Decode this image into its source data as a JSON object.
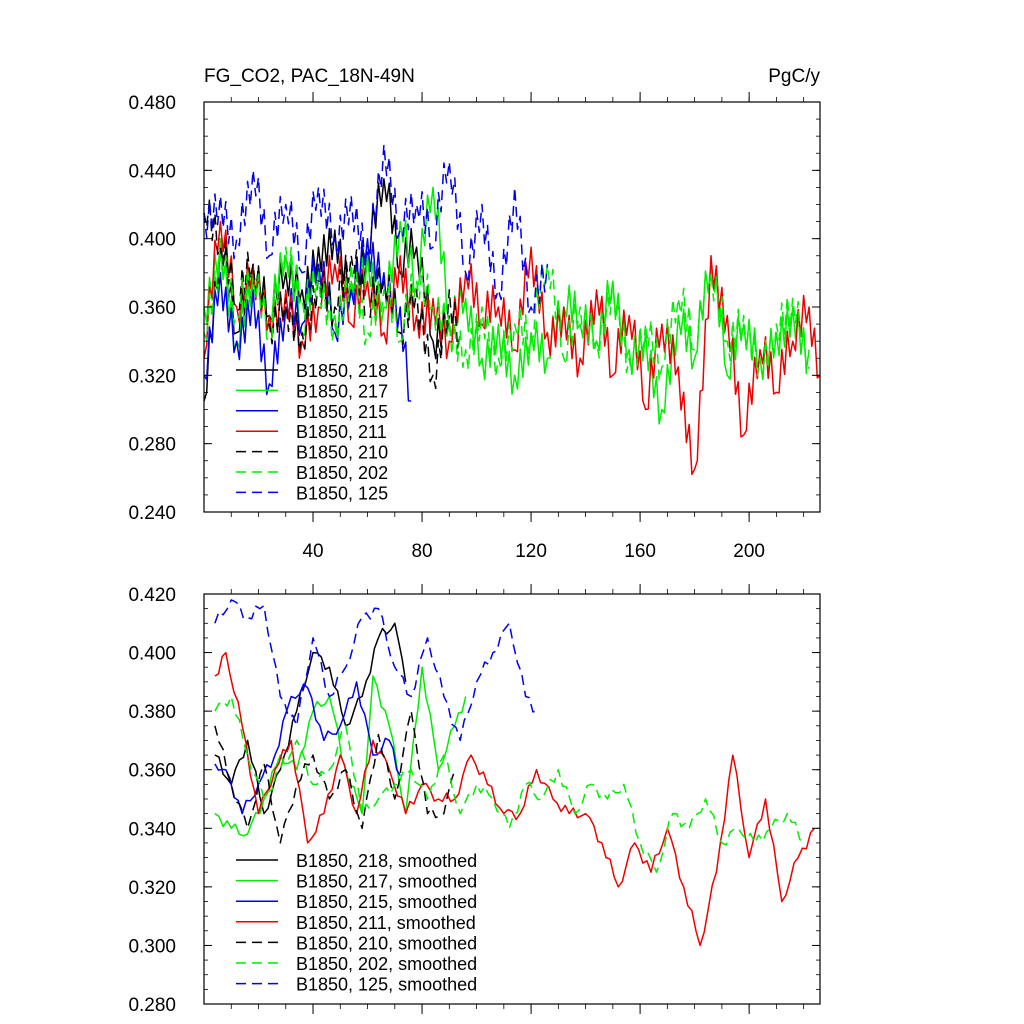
{
  "chart_data": [
    {
      "type": "line",
      "title": "FG_CO2, PAC_18N-49N",
      "units": "PgC/y",
      "xlim": [
        0,
        226
      ],
      "ylim": [
        0.24,
        0.48
      ],
      "x_ticks": [
        40,
        80,
        120,
        160,
        200
      ],
      "y_ticks": [
        0.24,
        0.28,
        0.32,
        0.36,
        0.4,
        0.44,
        0.48
      ],
      "y_tick_labels": [
        "0.240",
        "0.280",
        "0.320",
        "0.360",
        "0.400",
        "0.440",
        "0.480"
      ],
      "x_tick_labels": [
        "40",
        "80",
        "120",
        "160",
        "200"
      ],
      "legend_position": "bottom-left",
      "series": [
        {
          "name": "B1850, 218",
          "color": "#000000",
          "dash": "solid",
          "smooth": false,
          "x": [
            0,
            6,
            12,
            18,
            24,
            30,
            36,
            42,
            48,
            54,
            60,
            66,
            72,
            78,
            84,
            90
          ],
          "y": [
            0.305,
            0.4,
            0.345,
            0.375,
            0.355,
            0.38,
            0.37,
            0.395,
            0.405,
            0.372,
            0.392,
            0.435,
            0.38,
            0.395,
            0.34,
            0.355
          ]
        },
        {
          "name": "B1850, 217",
          "color": "#00ee00",
          "dash": "solid",
          "smooth": false,
          "x": [
            0,
            6,
            12,
            18,
            24,
            30,
            36,
            42,
            48,
            54,
            60,
            66,
            72,
            78,
            84,
            90,
            96,
            102,
            108,
            114,
            120,
            126,
            132,
            138,
            144,
            150,
            156,
            162,
            168,
            174,
            180,
            186,
            192,
            198,
            204,
            210,
            216,
            222
          ],
          "y": [
            0.36,
            0.4,
            0.34,
            0.38,
            0.35,
            0.39,
            0.345,
            0.385,
            0.355,
            0.375,
            0.39,
            0.36,
            0.41,
            0.37,
            0.43,
            0.35,
            0.365,
            0.33,
            0.35,
            0.32,
            0.345,
            0.33,
            0.36,
            0.35,
            0.34,
            0.375,
            0.335,
            0.345,
            0.3,
            0.355,
            0.33,
            0.385,
            0.32,
            0.35,
            0.33,
            0.345,
            0.36,
            0.335
          ]
        },
        {
          "name": "B1850, 215",
          "color": "#0000ee",
          "dash": "solid",
          "smooth": false,
          "x": [
            0,
            6,
            12,
            18,
            24,
            30,
            36,
            42,
            48,
            54,
            60,
            66,
            72,
            76
          ],
          "y": [
            0.32,
            0.38,
            0.34,
            0.37,
            0.315,
            0.36,
            0.35,
            0.385,
            0.345,
            0.37,
            0.4,
            0.38,
            0.36,
            0.305
          ]
        },
        {
          "name": "B1850, 211",
          "color": "#ee0000",
          "dash": "solid",
          "smooth": false,
          "x": [
            0,
            6,
            12,
            18,
            24,
            30,
            36,
            42,
            48,
            54,
            60,
            66,
            72,
            78,
            84,
            90,
            96,
            102,
            108,
            114,
            120,
            126,
            132,
            138,
            144,
            150,
            156,
            162,
            168,
            174,
            180,
            186,
            192,
            198,
            204,
            210,
            216,
            222,
            226
          ],
          "y": [
            0.33,
            0.41,
            0.36,
            0.385,
            0.355,
            0.37,
            0.34,
            0.36,
            0.385,
            0.35,
            0.375,
            0.345,
            0.39,
            0.355,
            0.365,
            0.34,
            0.38,
            0.35,
            0.36,
            0.335,
            0.395,
            0.345,
            0.36,
            0.33,
            0.37,
            0.32,
            0.355,
            0.3,
            0.35,
            0.325,
            0.265,
            0.39,
            0.355,
            0.285,
            0.335,
            0.31,
            0.34,
            0.36,
            0.32
          ]
        },
        {
          "name": "B1850, 210",
          "color": "#000000",
          "dash": "dashed",
          "smooth": false,
          "x": [
            0,
            6,
            12,
            18,
            24,
            30,
            36,
            42,
            48,
            54,
            60,
            66,
            72,
            78,
            84,
            90,
            94
          ],
          "y": [
            0.415,
            0.395,
            0.36,
            0.385,
            0.35,
            0.365,
            0.345,
            0.38,
            0.36,
            0.39,
            0.355,
            0.375,
            0.345,
            0.37,
            0.32,
            0.37,
            0.345
          ]
        },
        {
          "name": "B1850, 202",
          "color": "#00ee00",
          "dash": "dashed",
          "smooth": false,
          "x": [
            0,
            6,
            12,
            18,
            24,
            30,
            36,
            42,
            48,
            54,
            60,
            66,
            72,
            78,
            84,
            90,
            96,
            102,
            108,
            114,
            120,
            126,
            132,
            138,
            144,
            150,
            156,
            162,
            168,
            174,
            180,
            186,
            192,
            198,
            204,
            210,
            216,
            222
          ],
          "y": [
            0.345,
            0.39,
            0.355,
            0.375,
            0.34,
            0.395,
            0.365,
            0.38,
            0.35,
            0.385,
            0.345,
            0.37,
            0.34,
            0.375,
            0.36,
            0.35,
            0.335,
            0.36,
            0.33,
            0.35,
            0.34,
            0.385,
            0.33,
            0.36,
            0.34,
            0.375,
            0.33,
            0.35,
            0.325,
            0.365,
            0.335,
            0.38,
            0.34,
            0.355,
            0.33,
            0.35,
            0.365,
            0.325
          ]
        },
        {
          "name": "B1850, 125",
          "color": "#0000ee",
          "dash": "dashed",
          "smooth": false,
          "x": [
            0,
            6,
            12,
            18,
            24,
            30,
            36,
            42,
            48,
            54,
            60,
            66,
            72,
            78,
            84,
            90,
            96,
            102,
            108,
            114,
            120,
            126
          ],
          "y": [
            0.415,
            0.425,
            0.4,
            0.44,
            0.39,
            0.42,
            0.38,
            0.43,
            0.4,
            0.425,
            0.395,
            0.455,
            0.405,
            0.42,
            0.395,
            0.445,
            0.38,
            0.42,
            0.37,
            0.43,
            0.36,
            0.385
          ]
        }
      ]
    },
    {
      "type": "line",
      "title": "",
      "xlim": [
        0,
        226
      ],
      "ylim": [
        0.28,
        0.42
      ],
      "x_ticks": [
        40,
        80,
        120,
        160,
        200
      ],
      "y_ticks": [
        0.28,
        0.3,
        0.32,
        0.34,
        0.36,
        0.38,
        0.4,
        0.42
      ],
      "y_tick_labels": [
        "0.280",
        "0.300",
        "0.320",
        "0.340",
        "0.360",
        "0.380",
        "0.400",
        "0.420"
      ],
      "legend_position": "bottom-left",
      "series": [
        {
          "name": "B1850, 218, smoothed",
          "color": "#000000",
          "dash": "solid",
          "smooth": true,
          "x": [
            4,
            10,
            16,
            22,
            28,
            34,
            40,
            46,
            52,
            58,
            64,
            70,
            74
          ],
          "y": [
            0.365,
            0.355,
            0.37,
            0.345,
            0.36,
            0.38,
            0.4,
            0.395,
            0.375,
            0.385,
            0.405,
            0.41,
            0.39
          ]
        },
        {
          "name": "B1850, 217, smoothed",
          "color": "#00ee00",
          "dash": "solid",
          "smooth": true,
          "x": [
            4,
            10,
            16,
            22,
            28,
            34,
            40,
            46,
            52,
            58,
            62,
            68,
            74,
            80,
            86,
            92,
            96
          ],
          "y": [
            0.345,
            0.34,
            0.338,
            0.35,
            0.365,
            0.36,
            0.38,
            0.385,
            0.36,
            0.345,
            0.392,
            0.375,
            0.345,
            0.395,
            0.36,
            0.375,
            0.385
          ]
        },
        {
          "name": "B1850, 215, smoothed",
          "color": "#0000ee",
          "dash": "solid",
          "smooth": true,
          "x": [
            4,
            8,
            14,
            20,
            26,
            32,
            38,
            44,
            50,
            56,
            62,
            68,
            72
          ],
          "y": [
            0.362,
            0.36,
            0.345,
            0.355,
            0.365,
            0.385,
            0.388,
            0.37,
            0.375,
            0.39,
            0.365,
            0.37,
            0.358
          ]
        },
        {
          "name": "B1850, 211, smoothed",
          "color": "#ee0000",
          "dash": "solid",
          "smooth": true,
          "x": [
            4,
            8,
            14,
            20,
            26,
            32,
            38,
            44,
            50,
            56,
            62,
            68,
            74,
            80,
            86,
            92,
            98,
            104,
            110,
            116,
            122,
            128,
            134,
            140,
            146,
            152,
            158,
            164,
            170,
            176,
            182,
            188,
            194,
            200,
            206,
            212,
            218,
            224
          ],
          "y": [
            0.392,
            0.4,
            0.375,
            0.345,
            0.36,
            0.37,
            0.335,
            0.345,
            0.365,
            0.345,
            0.37,
            0.36,
            0.345,
            0.355,
            0.35,
            0.35,
            0.365,
            0.355,
            0.345,
            0.345,
            0.36,
            0.35,
            0.345,
            0.345,
            0.335,
            0.32,
            0.335,
            0.325,
            0.34,
            0.32,
            0.3,
            0.325,
            0.365,
            0.33,
            0.35,
            0.315,
            0.33,
            0.34
          ]
        },
        {
          "name": "B1850, 210, smoothed",
          "color": "#000000",
          "dash": "dashed",
          "smooth": true,
          "x": [
            4,
            10,
            16,
            22,
            28,
            34,
            40,
            46,
            52,
            58,
            64,
            70,
            76,
            82,
            88,
            92
          ],
          "y": [
            0.375,
            0.355,
            0.34,
            0.362,
            0.335,
            0.355,
            0.365,
            0.35,
            0.36,
            0.34,
            0.372,
            0.35,
            0.38,
            0.345,
            0.345,
            0.36
          ]
        },
        {
          "name": "B1850, 202, smoothed",
          "color": "#00ee00",
          "dash": "dashed",
          "smooth": true,
          "x": [
            4,
            10,
            16,
            22,
            28,
            34,
            40,
            46,
            52,
            58,
            64,
            70,
            76,
            82,
            88,
            94,
            100,
            106,
            112,
            118,
            124,
            130,
            136,
            142,
            148,
            154,
            160,
            166,
            172,
            178,
            184,
            190,
            196,
            202,
            208,
            214,
            220
          ],
          "y": [
            0.38,
            0.385,
            0.365,
            0.35,
            0.36,
            0.37,
            0.355,
            0.36,
            0.375,
            0.345,
            0.35,
            0.355,
            0.36,
            0.35,
            0.365,
            0.345,
            0.355,
            0.35,
            0.34,
            0.355,
            0.35,
            0.36,
            0.345,
            0.355,
            0.35,
            0.355,
            0.335,
            0.325,
            0.345,
            0.34,
            0.35,
            0.335,
            0.34,
            0.335,
            0.34,
            0.345,
            0.335
          ]
        },
        {
          "name": "B1850, 125, smoothed",
          "color": "#0000ee",
          "dash": "dashed",
          "smooth": true,
          "x": [
            4,
            10,
            16,
            22,
            28,
            34,
            40,
            46,
            52,
            58,
            64,
            70,
            76,
            82,
            88,
            94,
            100,
            106,
            112,
            118,
            122
          ],
          "y": [
            0.41,
            0.418,
            0.412,
            0.416,
            0.385,
            0.375,
            0.405,
            0.385,
            0.395,
            0.412,
            0.415,
            0.395,
            0.385,
            0.405,
            0.385,
            0.37,
            0.39,
            0.4,
            0.41,
            0.385,
            0.38
          ]
        }
      ]
    }
  ]
}
